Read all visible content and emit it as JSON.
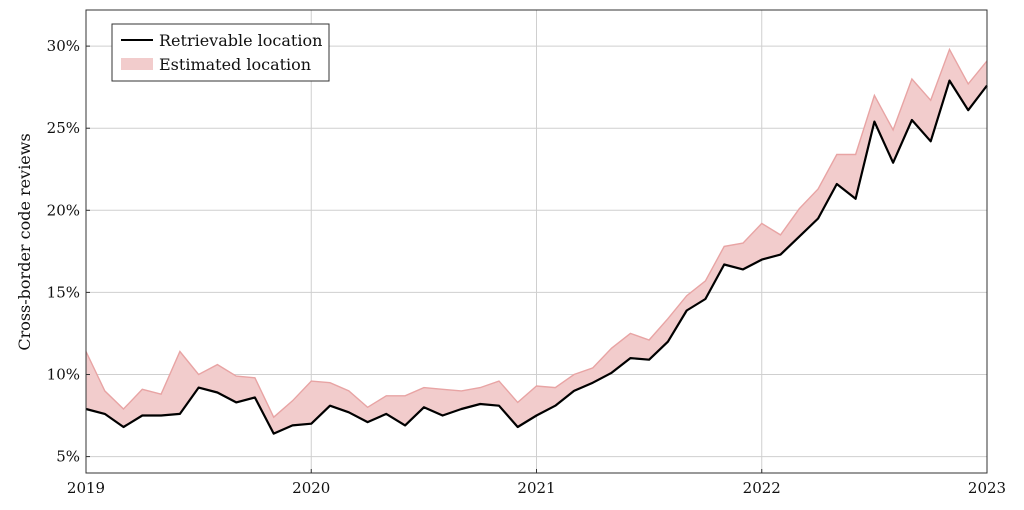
{
  "chart_data": {
    "type": "area",
    "ylabel": "Cross-border code reviews",
    "xlabel": "",
    "ylim": [
      4.0,
      32.2
    ],
    "xlim": [
      2019.0,
      2023.0
    ],
    "x_ticks": [
      {
        "value": 2019,
        "label": "2019"
      },
      {
        "value": 2020,
        "label": "2020"
      },
      {
        "value": 2021,
        "label": "2021"
      },
      {
        "value": 2022,
        "label": "2022"
      },
      {
        "value": 2023,
        "label": "2023"
      }
    ],
    "y_ticks": [
      {
        "value": 5,
        "label": "5%"
      },
      {
        "value": 10,
        "label": "10%"
      },
      {
        "value": 15,
        "label": "15%"
      },
      {
        "value": 20,
        "label": "20%"
      },
      {
        "value": 25,
        "label": "25%"
      },
      {
        "value": 30,
        "label": "30%"
      }
    ],
    "grid": true,
    "legend_position": "top-left",
    "colors": {
      "line": "#000000",
      "band_fill": "#f2cccc",
      "band_edge": "#e8a4a4",
      "grid": "#cfcfcf"
    },
    "series": [
      {
        "name": "Retrievable location",
        "kind": "line",
        "x": [
          "2019-01",
          "2019-02",
          "2019-03",
          "2019-04",
          "2019-05",
          "2019-06",
          "2019-07",
          "2019-08",
          "2019-09",
          "2019-10",
          "2019-11",
          "2019-12",
          "2020-01",
          "2020-02",
          "2020-03",
          "2020-04",
          "2020-05",
          "2020-06",
          "2020-07",
          "2020-08",
          "2020-09",
          "2020-10",
          "2020-11",
          "2020-12",
          "2021-01",
          "2021-02",
          "2021-03",
          "2021-04",
          "2021-05",
          "2021-06",
          "2021-07",
          "2021-08",
          "2021-09",
          "2021-10",
          "2021-11",
          "2021-12",
          "2022-01",
          "2022-02",
          "2022-03",
          "2022-04",
          "2022-05",
          "2022-06",
          "2022-07",
          "2022-08",
          "2022-09",
          "2022-10",
          "2022-11",
          "2022-12",
          "2023-01"
        ],
        "values": [
          7.9,
          7.6,
          6.8,
          7.5,
          7.5,
          7.6,
          9.2,
          8.9,
          8.3,
          8.6,
          6.4,
          6.9,
          7.0,
          8.1,
          7.7,
          7.1,
          7.6,
          6.9,
          8.0,
          7.5,
          7.9,
          8.2,
          8.1,
          6.8,
          7.5,
          8.1,
          9.0,
          9.5,
          10.1,
          11.0,
          10.9,
          12.0,
          13.9,
          14.6,
          16.7,
          16.4,
          17.0,
          17.3,
          18.4,
          19.5,
          21.6,
          20.7,
          25.4,
          22.9,
          25.5,
          24.2,
          27.9,
          26.1,
          27.6
        ]
      },
      {
        "name": "Estimated location",
        "kind": "band",
        "x": [
          "2019-01",
          "2019-02",
          "2019-03",
          "2019-04",
          "2019-05",
          "2019-06",
          "2019-07",
          "2019-08",
          "2019-09",
          "2019-10",
          "2019-11",
          "2019-12",
          "2020-01",
          "2020-02",
          "2020-03",
          "2020-04",
          "2020-05",
          "2020-06",
          "2020-07",
          "2020-08",
          "2020-09",
          "2020-10",
          "2020-11",
          "2020-12",
          "2021-01",
          "2021-02",
          "2021-03",
          "2021-04",
          "2021-05",
          "2021-06",
          "2021-07",
          "2021-08",
          "2021-09",
          "2021-10",
          "2021-11",
          "2021-12",
          "2022-01",
          "2022-02",
          "2022-03",
          "2022-04",
          "2022-05",
          "2022-06",
          "2022-07",
          "2022-08",
          "2022-09",
          "2022-10",
          "2022-11",
          "2022-12",
          "2023-01"
        ],
        "values": [
          11.4,
          9.0,
          7.9,
          9.1,
          8.8,
          11.4,
          10.0,
          10.6,
          9.9,
          9.8,
          7.4,
          8.4,
          9.6,
          9.5,
          9.0,
          8.0,
          8.7,
          8.7,
          9.2,
          9.1,
          9.0,
          9.2,
          9.6,
          8.3,
          9.3,
          9.2,
          10.0,
          10.4,
          11.6,
          12.5,
          12.1,
          13.4,
          14.8,
          15.7,
          17.8,
          18.0,
          19.2,
          18.5,
          20.1,
          21.3,
          23.4,
          23.4,
          27.0,
          24.9,
          28.0,
          26.7,
          29.8,
          27.7,
          29.1
        ]
      }
    ]
  }
}
